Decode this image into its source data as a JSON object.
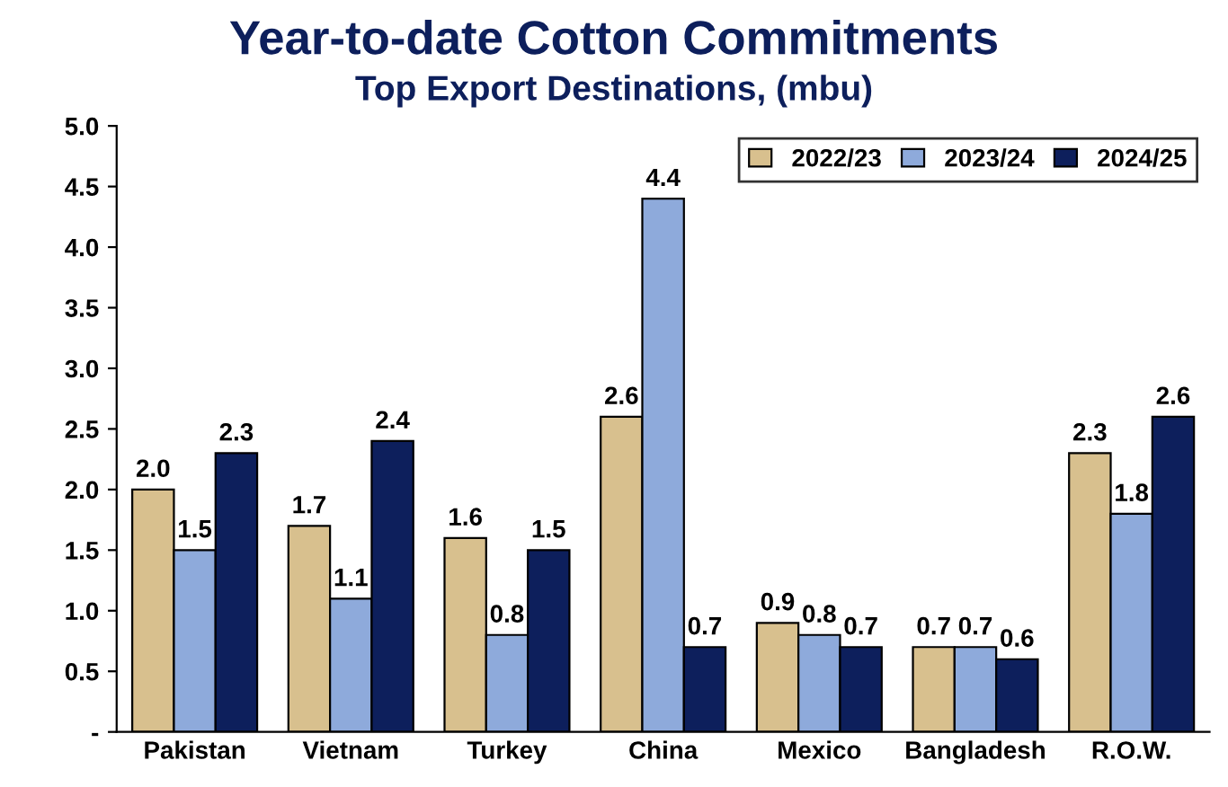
{
  "chart_data": {
    "type": "bar",
    "title": "Year-to-date Cotton Commitments",
    "subtitle": "Top Export Destinations, (mbu)",
    "categories": [
      "Pakistan",
      "Vietnam",
      "Turkey",
      "China",
      "Mexico",
      "Bangladesh",
      "R.O.W."
    ],
    "series": [
      {
        "name": "2022/23",
        "color": "#d8c08e",
        "values": [
          2.0,
          1.7,
          1.6,
          2.6,
          0.9,
          0.7,
          2.3
        ],
        "value_labels": [
          "2.0",
          "1.7",
          "1.6",
          "2.6",
          "0.9",
          "0.7",
          "2.3"
        ]
      },
      {
        "name": "2023/24",
        "color": "#8eaadb",
        "values": [
          1.5,
          1.1,
          0.8,
          4.4,
          0.8,
          0.7,
          1.8
        ],
        "value_labels": [
          "1.5",
          "1.1",
          "0.8",
          "4.4",
          "0.8",
          "0.7",
          "1.8"
        ]
      },
      {
        "name": "2024/25",
        "color": "#0d1f5c",
        "values": [
          2.3,
          2.4,
          1.5,
          0.7,
          0.7,
          0.6,
          2.6
        ],
        "value_labels": [
          "2.3",
          "2.4",
          "1.5",
          "0.7",
          "0.7",
          "0.6",
          "2.6"
        ]
      }
    ],
    "ylim": [
      0,
      5
    ],
    "yticks": [
      {
        "value": 0,
        "label": "-"
      },
      {
        "value": 0.5,
        "label": "0.5"
      },
      {
        "value": 1,
        "label": "1.0"
      },
      {
        "value": 1.5,
        "label": "1.5"
      },
      {
        "value": 2,
        "label": "2.0"
      },
      {
        "value": 2.5,
        "label": "2.5"
      },
      {
        "value": 3,
        "label": "3.0"
      },
      {
        "value": 3.5,
        "label": "3.5"
      },
      {
        "value": 4,
        "label": "4.0"
      },
      {
        "value": 4.5,
        "label": "4.5"
      },
      {
        "value": 5,
        "label": "5.0"
      }
    ],
    "legend": "top right",
    "grid": false
  }
}
